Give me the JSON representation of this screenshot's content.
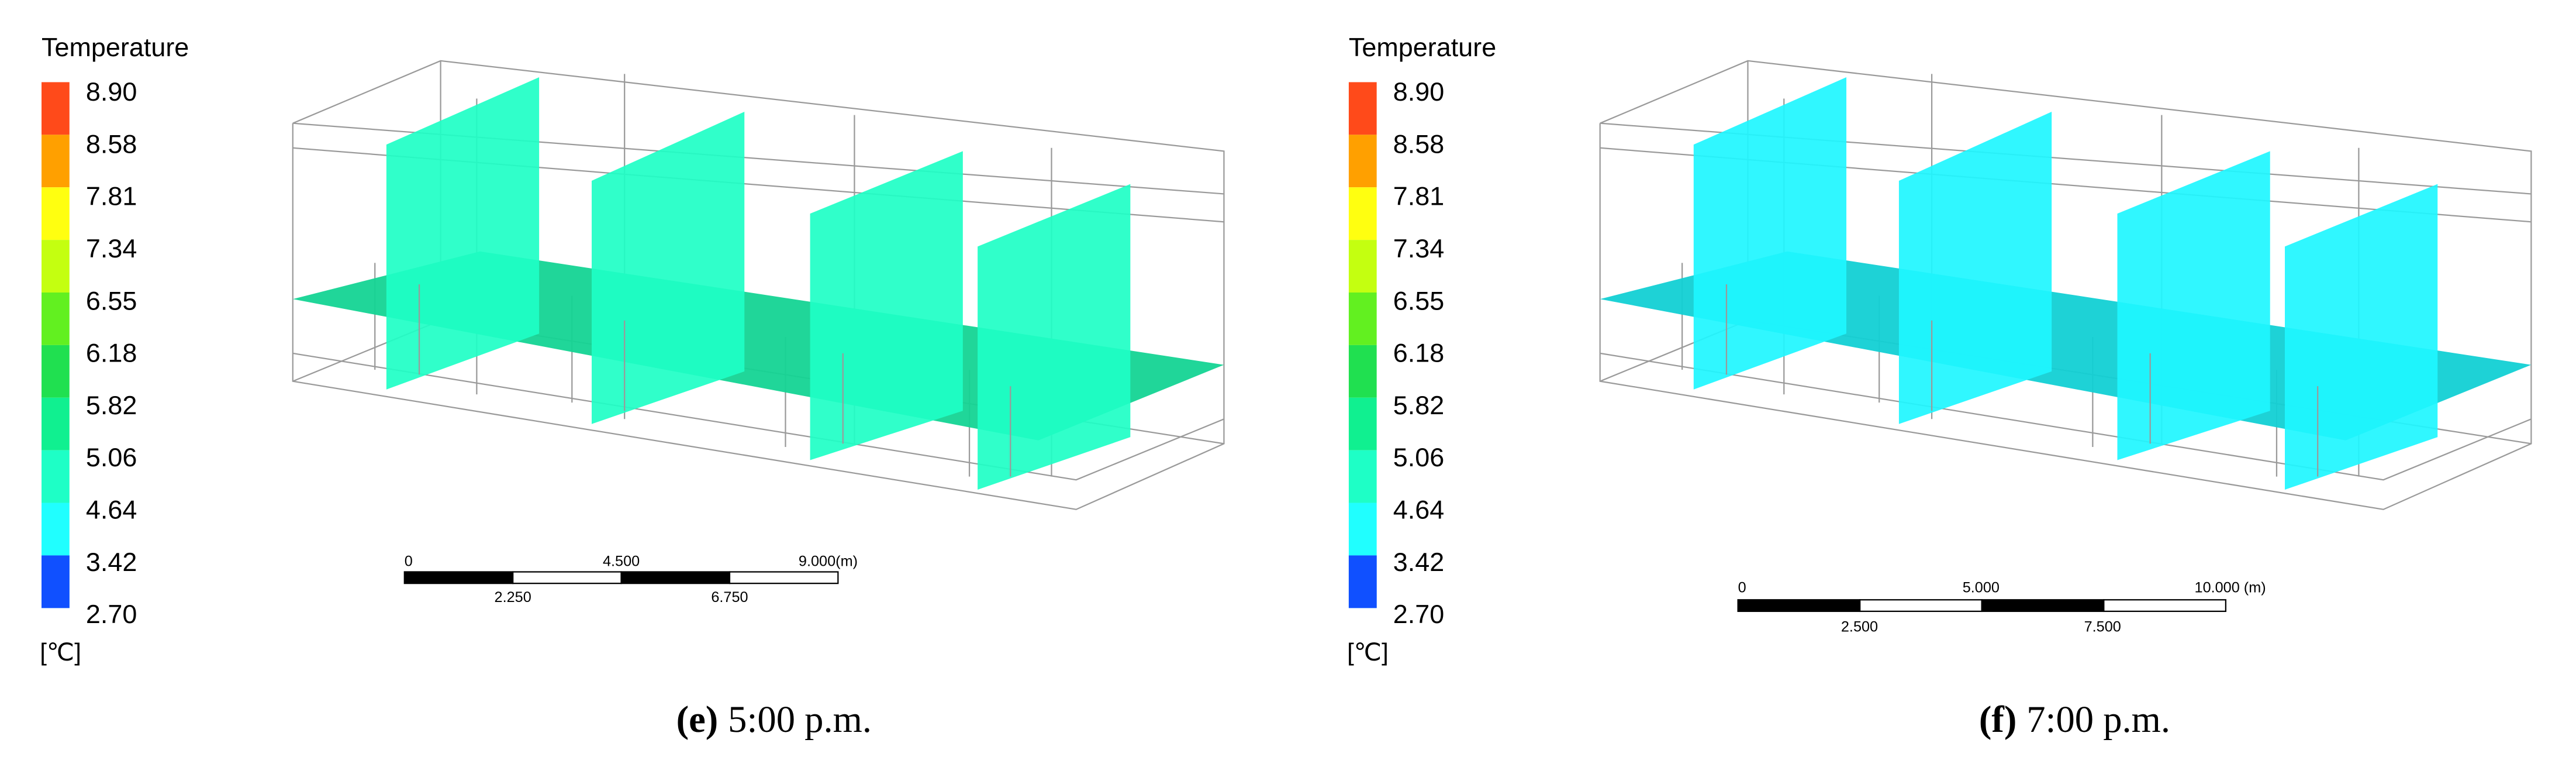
{
  "panels": [
    {
      "legend": {
        "title": "Temperature",
        "labels": [
          "8.90",
          "8.58",
          "7.81",
          "7.34",
          "6.55",
          "6.18",
          "5.82",
          "5.06",
          "4.64",
          "3.42",
          "2.70"
        ],
        "colors": [
          "#ff4a1a",
          "#ffa000",
          "#ffff10",
          "#c4ff10",
          "#62f020",
          "#20e050",
          "#10f090",
          "#1effc6",
          "#20ffff",
          "#10a8ff",
          "#1050ff"
        ],
        "unit": "[℃]"
      },
      "plane_color": "#1effc6",
      "floor_color": "#14d494",
      "scale_bar": {
        "top_labels": [
          "0",
          "4.500",
          "9.000(m)"
        ],
        "bottom_labels": [
          "2.250",
          "6.750"
        ]
      },
      "caption": {
        "label": "(e)",
        "text": "5:00 p.m."
      }
    },
    {
      "legend": {
        "title": "Temperature",
        "labels": [
          "8.90",
          "8.58",
          "7.81",
          "7.34",
          "6.55",
          "6.18",
          "5.82",
          "5.06",
          "4.64",
          "3.42",
          "2.70"
        ],
        "colors": [
          "#ff4a1a",
          "#ffa000",
          "#ffff10",
          "#c4ff10",
          "#62f020",
          "#20e050",
          "#10f090",
          "#1effc6",
          "#20ffff",
          "#10a8ff",
          "#1050ff"
        ],
        "unit": "[℃]"
      },
      "plane_color": "#1ef6ff",
      "floor_color": "#12d0d4",
      "scale_bar": {
        "top_labels": [
          "0",
          "5.000",
          "10.000 (m)"
        ],
        "bottom_labels": [
          "2.500",
          "7.500"
        ]
      },
      "caption": {
        "label": "(f)",
        "text": "7:00 p.m."
      }
    }
  ]
}
